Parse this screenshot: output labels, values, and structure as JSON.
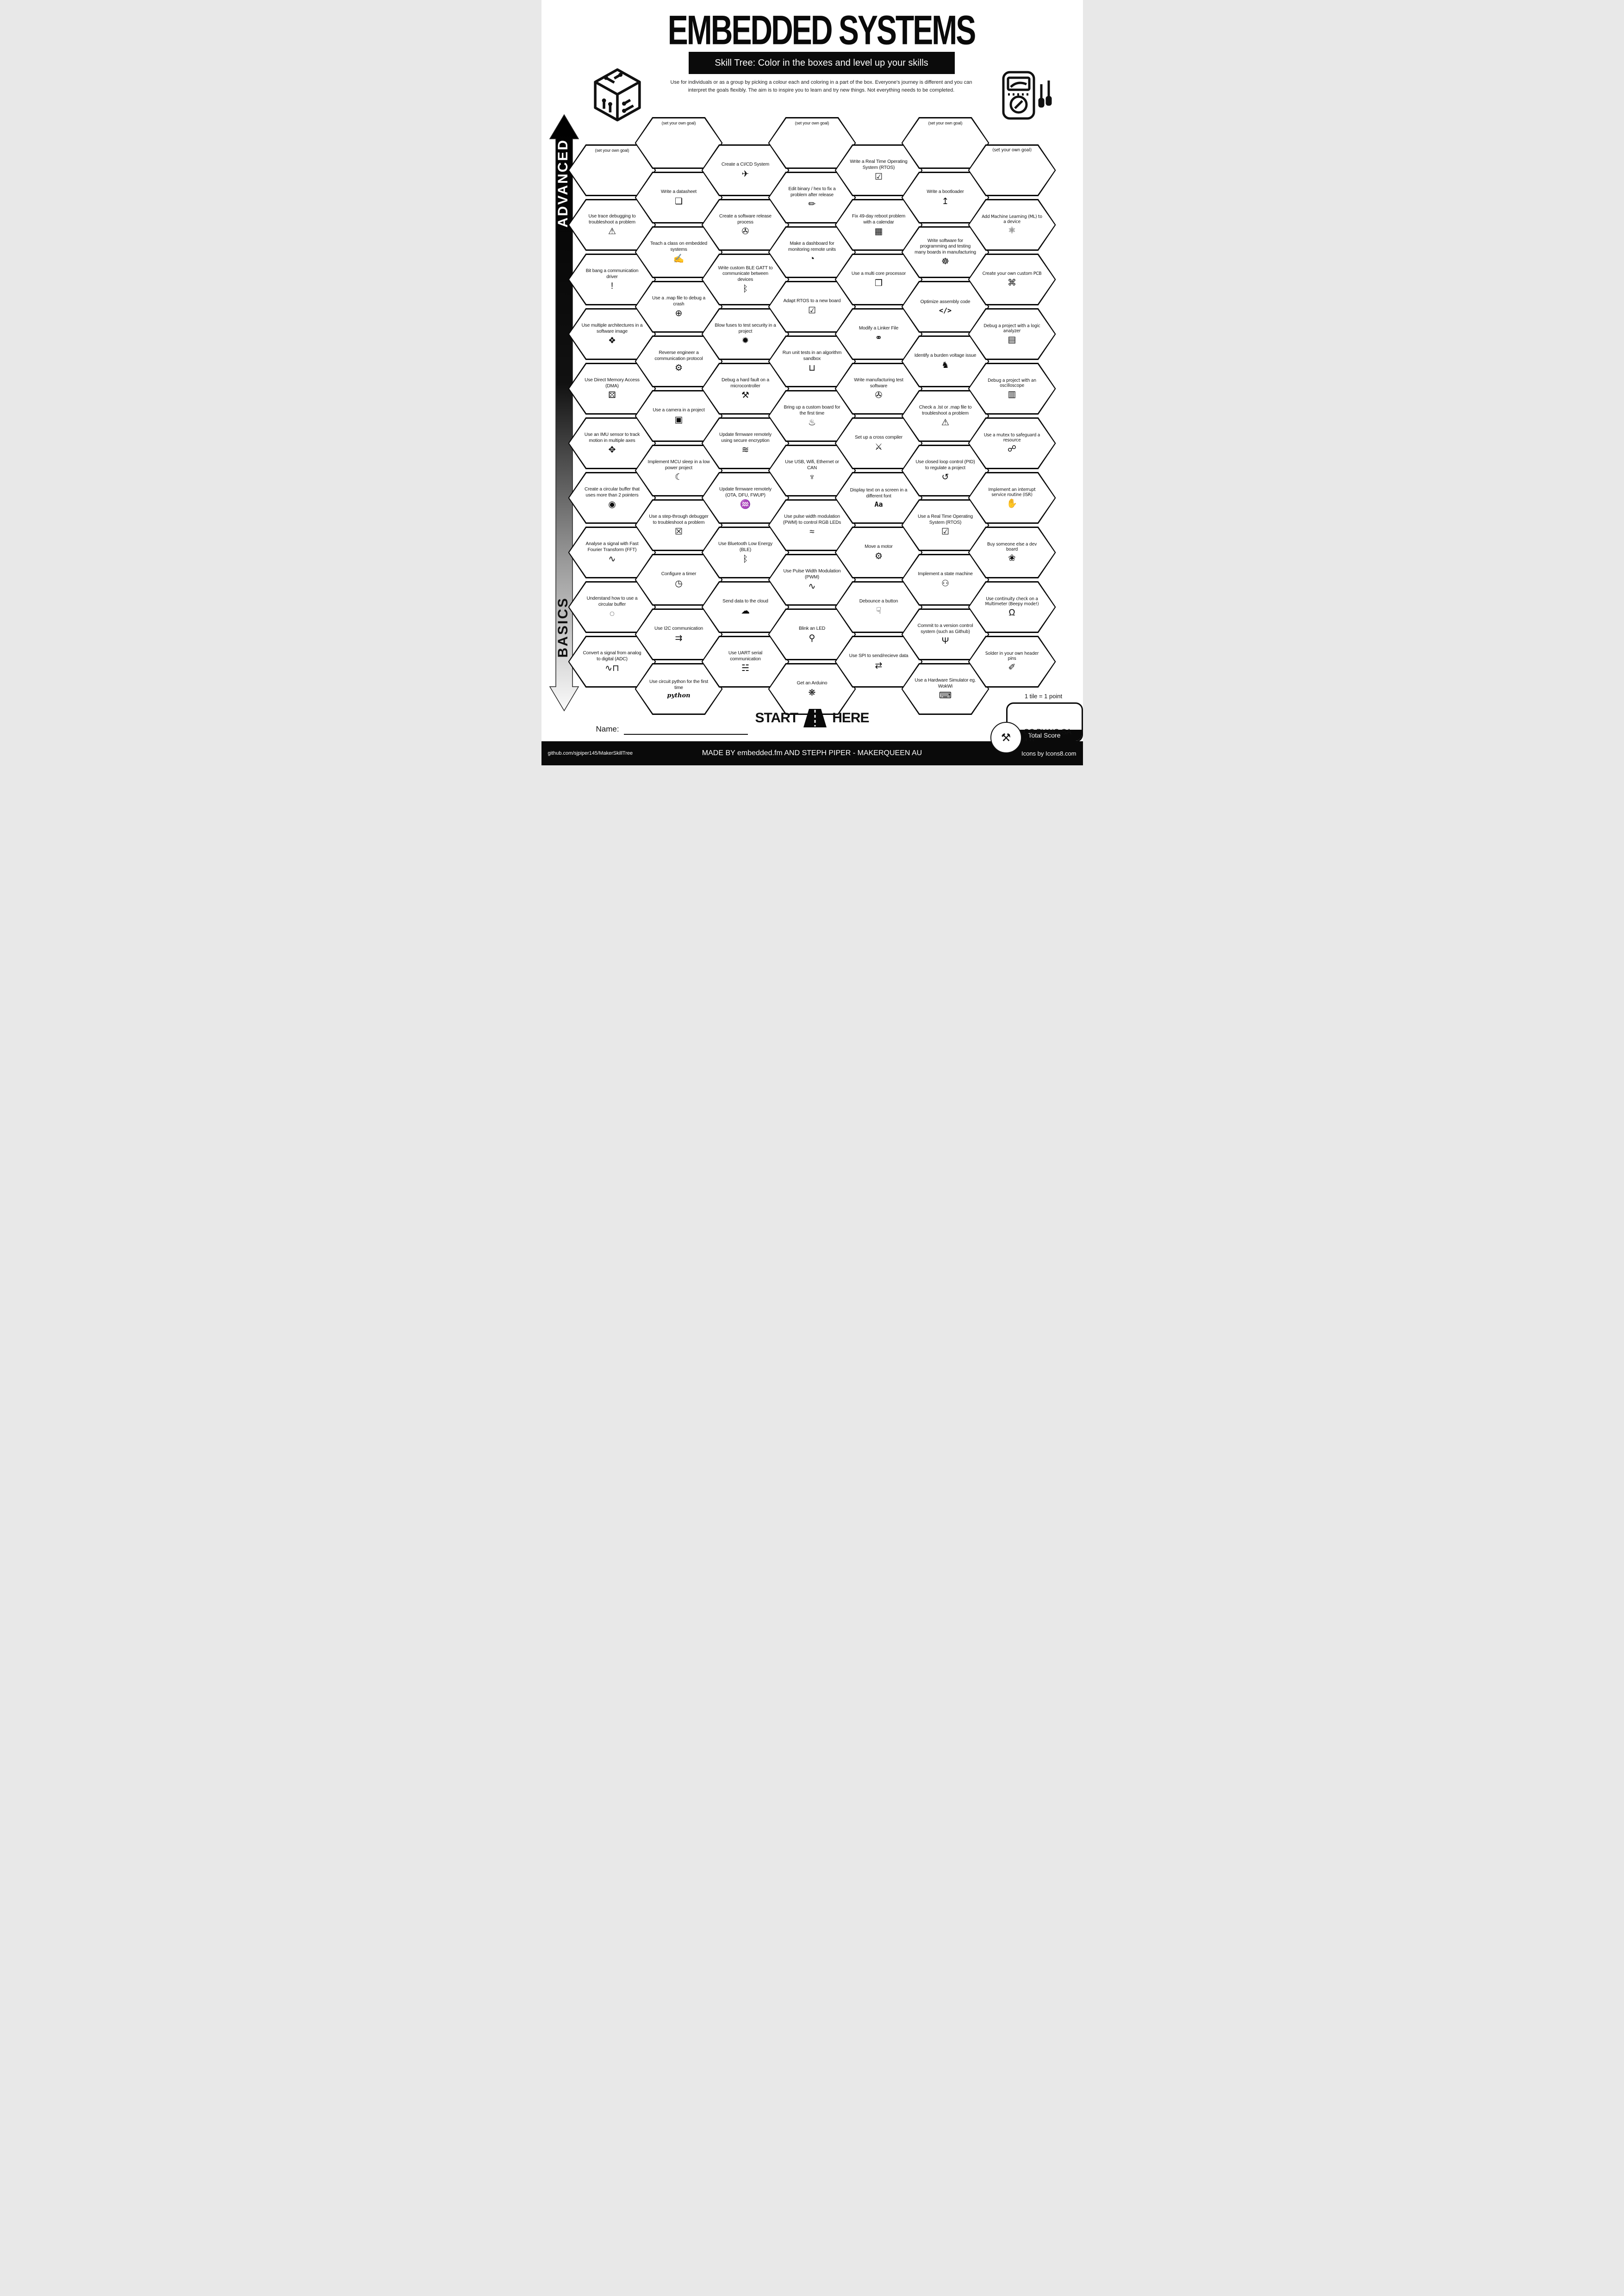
{
  "header": {
    "title": "EMBEDDED SYSTEMS",
    "banner": "Skill Tree:  Color in the boxes and level up your skills",
    "subtitle_line1": "Use for individuals or as a group by picking a colour each and coloring in a part of the box.  Everyone's journey is different and you can",
    "subtitle_line2": "interpret the goals flexibly.  The aim is to inspire you to learn and try new things. Not everything needs to be completed."
  },
  "side": {
    "advanced": "ADVANCED",
    "basics": "BASICS"
  },
  "start_here": {
    "word1": "START",
    "word2": "HERE"
  },
  "name_label": "Name:",
  "scoring": {
    "tile_note": "1 tile = 1 point",
    "total_label": "Total Score"
  },
  "license_text": "CC BY-NC-SA 4.0",
  "footer": {
    "left": "github.com/sjpiper145/MakerSkillTree",
    "center": "MADE BY embedded.fm AND STEPH PIPER  -  MAKERQUEEN AU",
    "right": "Icons by Icons8.com"
  },
  "grid": {
    "columns": [
      {
        "offset": "low",
        "tiles": [
          {
            "goal": true,
            "label": "(set your own goal)"
          },
          {
            "label": "Use trace debugging to troubleshoot a problem",
            "icon": "⚠",
            "icon_name": "monitor-alert-icon"
          },
          {
            "label": "Bit bang a communication driver",
            "icon": "!",
            "icon_name": "exclamation-icon"
          },
          {
            "label": "Use multiple architectures in a software image",
            "icon": "❖",
            "icon_name": "cube-network-icon"
          },
          {
            "label": "Use Direct Memory Access (DMA)",
            "icon": "⚄",
            "icon_name": "chip-maze-icon"
          },
          {
            "label": "Use an IMU sensor to track motion in multiple axes",
            "icon": "✥",
            "icon_name": "axes-cube-icon"
          },
          {
            "label": "Create a circular buffer that uses more than 2 pointers",
            "icon": "◉",
            "icon_name": "segmented-ring-icon"
          },
          {
            "label": "Analyse a signal with Fast Fourier Transform (FFT)",
            "icon": "∿",
            "icon_name": "wave-magnifier-icon"
          },
          {
            "label": "Understand how to use a circular buffer",
            "icon": "◌",
            "icon_name": "ring-icon"
          },
          {
            "label": "Convert a signal from analog to digital (ADC)",
            "icon": "∿⊓",
            "icon_name": "analog-digital-wave-icon"
          }
        ]
      },
      {
        "offset": "high",
        "tiles": [
          {
            "goal": true,
            "label": "(set your own goal)"
          },
          {
            "label": "Write a datasheet",
            "icon": "❏",
            "icon_name": "document-icon"
          },
          {
            "label": "Teach a class on embedded systems",
            "icon": "✍",
            "icon_name": "teacher-blackboard-icon"
          },
          {
            "label": "Use a .map file to debug a crash",
            "icon": "⊕",
            "icon_name": "globe-icon"
          },
          {
            "label": "Reverse engineer a communication protocol",
            "icon": "⚙",
            "icon_name": "gear-arrows-icon"
          },
          {
            "label": "Use a camera in a project",
            "icon": "▣",
            "icon_name": "camera-icon"
          },
          {
            "label": "Implement MCU sleep in a low power project",
            "icon": "☾",
            "icon_name": "sleep-bed-icon"
          },
          {
            "label": "Use a step-through debugger to troubleshoot a problem",
            "icon": "☒",
            "icon_name": "monitor-bug-icon"
          },
          {
            "label": "Configure a timer",
            "icon": "◷",
            "icon_name": "stopwatch-icon"
          },
          {
            "label": "Use I2C communication",
            "icon": "⇉",
            "icon_name": "arrow-dots-icon"
          },
          {
            "label": "Use circuit python for the first time",
            "icon": "python",
            "icon_text": "script",
            "icon_name": "circuitpython-logo-icon"
          }
        ]
      },
      {
        "offset": "low",
        "tiles": [
          {
            "label": "Create a CI/CD System",
            "icon": "✈",
            "icon_name": "rocket-box-icon"
          },
          {
            "label": "Create a software release process",
            "icon": "✇",
            "icon_name": "disc-box-icon"
          },
          {
            "label": "Write custom BLE GATT to communicate between devices",
            "icon": "ᛒ",
            "icon_name": "bluetooth-icon"
          },
          {
            "label": "Blow fuses to test security in a project",
            "icon": "✹",
            "icon_name": "explosion-icon"
          },
          {
            "label": "Debug a hard fault on a microcontroller",
            "icon": "⚒",
            "icon_name": "tools-icon"
          },
          {
            "label": "Update firmware remotely using secure encryption",
            "icon": "≋",
            "icon_name": "wifi-lock-icon"
          },
          {
            "label": "Update firmware remotely (OTA, DFU, FWUP)",
            "icon": "♒",
            "icon_name": "wifi-icon"
          },
          {
            "label": "Use Bluetooth Low Energy (BLE)",
            "icon": "ᛒ",
            "icon_name": "bluetooth-icon"
          },
          {
            "label": "Send data to the cloud",
            "icon": "☁",
            "icon_name": "cloud-icon"
          },
          {
            "label": "Use UART serial communication",
            "icon": "☵",
            "icon_name": "droplet-icon"
          }
        ]
      },
      {
        "offset": "high",
        "tiles": [
          {
            "goal": true,
            "label": "(set your own goal)"
          },
          {
            "label": "Edit binary / hex to fix a problem after release",
            "icon": "✏",
            "icon_name": "pencil-icon"
          },
          {
            "label": "Make a dashboard for monitoring remote units",
            "icon": "◔",
            "icon_name": "gauge-icon"
          },
          {
            "label": "Adapt RTOS to a new board",
            "icon": "☑",
            "icon_name": "monitor-check-icon"
          },
          {
            "label": "Run unit tests in an algorithm sandbox",
            "icon": "⊔",
            "icon_name": "sandbox-icon"
          },
          {
            "label": "Bring up a custom board for the first time",
            "icon": "♨",
            "icon_name": "birthday-cake-icon"
          },
          {
            "label": "Use USB, Wifi, Ethernet or CAN",
            "icon": "♆",
            "icon_name": "usb-icon"
          },
          {
            "label": "Use pulse width modulation (PWM) to control RGB LEDs",
            "icon": "≈",
            "icon_name": "pwm-waves-icon"
          },
          {
            "label": "Use Pulse Width Modulation (PWM)",
            "icon": "∿",
            "icon_name": "pwm-wave-icon"
          },
          {
            "label": "Blink an LED",
            "icon": "⚲",
            "icon_name": "led-icon"
          },
          {
            "label": "Get an Arduino",
            "icon": "❋",
            "icon_name": "party-popper-icon"
          }
        ]
      },
      {
        "offset": "low",
        "tiles": [
          {
            "label": "Write a Real Time Operating System (RTOS)",
            "icon": "☑",
            "icon_name": "monitor-check-icon"
          },
          {
            "label": "Fix 49-day reboot problem with a calendar",
            "icon": "▦",
            "icon_name": "calendar-icon"
          },
          {
            "label": "Use a multi core processor",
            "icon": "❒",
            "icon_name": "cubes-icon"
          },
          {
            "label": "Modify a Linker File",
            "icon": "⚭",
            "icon_name": "chain-link-icon"
          },
          {
            "label": "Write manufacturing test software",
            "icon": "✇",
            "icon_name": "disc-box-icon"
          },
          {
            "label": "Set up a cross compiler",
            "icon": "⚔",
            "icon_name": "crossed-tools-icon"
          },
          {
            "label": "Display text on a screen in a different font",
            "icon": "Aa",
            "icon_text": "txt",
            "icon_name": "font-icon"
          },
          {
            "label": "Move a motor",
            "icon": "⚙",
            "icon_name": "motor-icon"
          },
          {
            "label": "Debounce a button",
            "icon": "☟",
            "icon_name": "finger-press-icon"
          },
          {
            "label": "Use SPI to send/recieve data",
            "icon": "⇄",
            "icon_name": "arrows-dots-icon"
          }
        ]
      },
      {
        "offset": "high",
        "tiles": [
          {
            "goal": true,
            "label": "(set your own goal)"
          },
          {
            "label": "Write a bootloader",
            "icon": "↥",
            "icon_name": "forklift-icon"
          },
          {
            "label": "Write software for programming and testing many boards in manufacturing",
            "icon": "☸",
            "icon_name": "octopus-icon"
          },
          {
            "label": "Optimize assembly code",
            "icon": "</>",
            "icon_text": "txt",
            "icon_name": "code-window-icon"
          },
          {
            "label": "Identify a burden voltage issue",
            "icon": "♞",
            "icon_name": "donkey-icon"
          },
          {
            "label": "Check a .lst or .map file to troubleshoot a problem",
            "icon": "⚠",
            "icon_name": "monitor-alert-icon"
          },
          {
            "label": "Use closed loop control (PID) to regulate a project",
            "icon": "↺",
            "icon_name": "loop-arrows-icon"
          },
          {
            "label": "Use a Real Time Operating System (RTOS)",
            "icon": "☑",
            "icon_name": "monitor-check-icon"
          },
          {
            "label": "Implement a state machine",
            "icon": "⚇",
            "icon_name": "robot-icon"
          },
          {
            "label": "Commit to a version control system (such as Github)",
            "icon": "Ψ",
            "icon_name": "git-branch-icon"
          },
          {
            "label": "Use a Hardware Simulator eg. WokWi",
            "icon": "⌨",
            "icon_name": "laptop-sim-icon"
          }
        ]
      },
      {
        "offset": "low",
        "alt_font": true,
        "tiles": [
          {
            "goal": true,
            "label": "(set your own goal)"
          },
          {
            "label": "Add Machine Learning (ML) to a device",
            "icon": "⚛",
            "icon_name": "head-gear-icon"
          },
          {
            "label": "Create your own custom PCB",
            "icon": "⌘",
            "icon_name": "pcb-icon"
          },
          {
            "label": "Debug a project with a logic analyzer",
            "icon": "▤",
            "icon_name": "logic-analyzer-icon"
          },
          {
            "label": "Debug a project with an oscilloscope",
            "icon": "▥",
            "icon_name": "oscilloscope-icon"
          },
          {
            "label": "Use a mutex to safeguard a resource",
            "icon": "☍",
            "icon_name": "handshake-icon"
          },
          {
            "label": "Implement an interrupt service routine (ISR)",
            "icon": "✋",
            "icon_name": "raised-hand-icon"
          },
          {
            "label": "Buy someone else a dev board",
            "icon": "❀",
            "icon_name": "gift-bow-icon"
          },
          {
            "label": "Use continuity check on a Multimeter (Beepy mode!)",
            "icon": "Ω",
            "icon_name": "multimeter-icon"
          },
          {
            "label": "Solder in your own header pins",
            "icon": "✐",
            "icon_name": "soldering-iron-icon"
          }
        ]
      }
    ]
  }
}
